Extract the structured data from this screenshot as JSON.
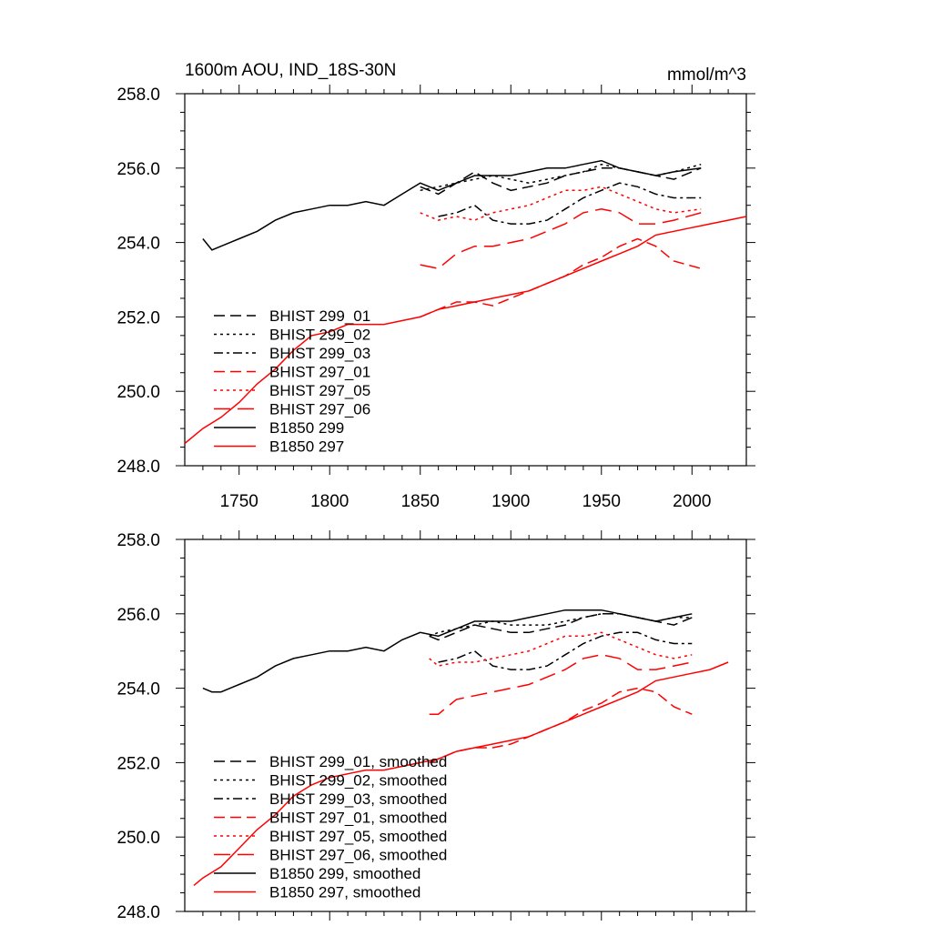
{
  "figure": {
    "title": "1600m AOU, IND_18S-30N",
    "units": "mmol/m^3"
  },
  "colors": {
    "black": "#000000",
    "red": "#ff0000"
  },
  "chart_data": [
    {
      "type": "line",
      "panel": "top",
      "xlim": [
        1720,
        2030
      ],
      "ylim": [
        248,
        258
      ],
      "xticks": [
        1750,
        1800,
        1850,
        1900,
        1950,
        2000
      ],
      "xtick_labels": [
        "1750",
        "1800",
        "1850",
        "1900",
        "1950",
        "2000"
      ],
      "yticks": [
        248,
        250,
        252,
        254,
        256,
        258
      ],
      "ytick_labels": [
        "248.0",
        "250.0",
        "252.0",
        "254.0",
        "256.0",
        "258.0"
      ],
      "legend_location": "lower-left",
      "series": [
        {
          "name": "BHIST 299_01",
          "color": "#000000",
          "dash": "dashed",
          "x": [
            1850,
            1860,
            1870,
            1880,
            1890,
            1900,
            1910,
            1920,
            1930,
            1940,
            1950,
            1960,
            1970,
            1980,
            1990,
            2005
          ],
          "y": [
            255.5,
            255.3,
            255.6,
            255.9,
            255.6,
            255.4,
            255.5,
            255.6,
            255.8,
            255.9,
            256.0,
            256.0,
            255.9,
            255.8,
            255.7,
            256.0
          ]
        },
        {
          "name": "BHIST 299_02",
          "color": "#000000",
          "dash": "dotted",
          "x": [
            1850,
            1860,
            1870,
            1880,
            1890,
            1900,
            1910,
            1920,
            1930,
            1940,
            1950,
            1960,
            1970,
            1980,
            1990,
            2005
          ],
          "y": [
            255.4,
            255.5,
            255.6,
            255.7,
            255.8,
            255.7,
            255.6,
            255.7,
            255.8,
            255.9,
            256.1,
            256.0,
            255.9,
            255.8,
            255.9,
            256.1
          ]
        },
        {
          "name": "BHIST 299_03",
          "color": "#000000",
          "dash": "dashdot",
          "x": [
            1860,
            1870,
            1880,
            1890,
            1900,
            1910,
            1920,
            1930,
            1940,
            1950,
            1960,
            1970,
            1980,
            1990,
            2005
          ],
          "y": [
            254.7,
            254.8,
            255.0,
            254.6,
            254.5,
            254.5,
            254.6,
            254.9,
            255.2,
            255.4,
            255.6,
            255.5,
            255.3,
            255.2,
            255.2
          ]
        },
        {
          "name": "BHIST 297_01",
          "color": "#ff0000",
          "dash": "dashed",
          "x": [
            1850,
            1860,
            1870,
            1880,
            1890,
            1900,
            1910,
            1920,
            1930,
            1940,
            1950,
            1960,
            1970,
            1980,
            1990,
            2005
          ],
          "y": [
            252.0,
            252.2,
            252.4,
            252.4,
            252.3,
            252.5,
            252.7,
            252.9,
            253.1,
            253.4,
            253.6,
            253.9,
            254.1,
            253.9,
            253.5,
            253.3
          ]
        },
        {
          "name": "BHIST 297_05",
          "color": "#ff0000",
          "dash": "dotted",
          "x": [
            1850,
            1860,
            1870,
            1880,
            1890,
            1900,
            1910,
            1920,
            1930,
            1940,
            1950,
            1960,
            1970,
            1980,
            1990,
            2005
          ],
          "y": [
            254.8,
            254.6,
            254.7,
            254.6,
            254.8,
            254.9,
            255.0,
            255.2,
            255.4,
            255.4,
            255.5,
            255.3,
            255.1,
            254.9,
            254.8,
            254.9
          ]
        },
        {
          "name": "BHIST 297_06",
          "color": "#ff0000",
          "dash": "longdash",
          "x": [
            1850,
            1860,
            1870,
            1880,
            1890,
            1900,
            1910,
            1920,
            1930,
            1940,
            1950,
            1960,
            1970,
            1980,
            1990,
            2005
          ],
          "y": [
            253.4,
            253.3,
            253.7,
            253.9,
            253.9,
            254.0,
            254.1,
            254.3,
            254.5,
            254.8,
            254.9,
            254.8,
            254.5,
            254.5,
            254.6,
            254.8
          ]
        },
        {
          "name": "B1850 299",
          "color": "#000000",
          "dash": "solid",
          "x": [
            1730,
            1735,
            1740,
            1750,
            1760,
            1770,
            1780,
            1790,
            1800,
            1810,
            1820,
            1830,
            1840,
            1850,
            1860,
            1870,
            1880,
            1890,
            1900,
            1910,
            1920,
            1930,
            1940,
            1950,
            1960,
            1970,
            1980,
            1990,
            2005
          ],
          "y": [
            254.1,
            253.8,
            253.9,
            254.1,
            254.3,
            254.6,
            254.8,
            254.9,
            255.0,
            255.0,
            255.1,
            255.0,
            255.3,
            255.6,
            255.4,
            255.6,
            255.8,
            255.8,
            255.8,
            255.9,
            256.0,
            256.0,
            256.1,
            256.2,
            256.0,
            255.9,
            255.8,
            255.9,
            256.0
          ]
        },
        {
          "name": "B1850 297",
          "color": "#ff0000",
          "dash": "solid",
          "x": [
            1720,
            1730,
            1740,
            1750,
            1760,
            1770,
            1780,
            1790,
            1800,
            1810,
            1820,
            1830,
            1840,
            1850,
            1860,
            1870,
            1880,
            1890,
            1900,
            1910,
            1920,
            1930,
            1940,
            1950,
            1960,
            1970,
            1980,
            1990,
            2000,
            2010,
            2020,
            2030
          ],
          "y": [
            248.6,
            249.0,
            249.3,
            249.7,
            250.2,
            250.6,
            251.1,
            251.5,
            251.6,
            251.8,
            251.8,
            251.8,
            251.9,
            252.0,
            252.2,
            252.3,
            252.4,
            252.5,
            252.6,
            252.7,
            252.9,
            253.1,
            253.3,
            253.5,
            253.7,
            253.9,
            254.2,
            254.3,
            254.4,
            254.5,
            254.6,
            254.7
          ]
        }
      ]
    },
    {
      "type": "line",
      "panel": "bottom",
      "xlim": [
        1720,
        2030
      ],
      "ylim": [
        248,
        258
      ],
      "yticks": [
        248,
        250,
        252,
        254,
        256,
        258
      ],
      "ytick_labels": [
        "248.0",
        "250.0",
        "252.0",
        "254.0",
        "256.0",
        "258.0"
      ],
      "legend_location": "lower-left",
      "series": [
        {
          "name": "BHIST 299_01, smoothed",
          "color": "#000000",
          "dash": "dashed",
          "x": [
            1855,
            1860,
            1870,
            1880,
            1890,
            1900,
            1910,
            1920,
            1930,
            1940,
            1950,
            1960,
            1970,
            1980,
            1990,
            2000
          ],
          "y": [
            255.4,
            255.3,
            255.5,
            255.7,
            255.6,
            255.5,
            255.5,
            255.6,
            255.7,
            255.9,
            256.0,
            256.0,
            255.9,
            255.8,
            255.7,
            255.9
          ]
        },
        {
          "name": "BHIST 299_02, smoothed",
          "color": "#000000",
          "dash": "dotted",
          "x": [
            1855,
            1860,
            1870,
            1880,
            1890,
            1900,
            1910,
            1920,
            1930,
            1940,
            1950,
            1960,
            1970,
            1980,
            1990,
            2000
          ],
          "y": [
            255.4,
            255.5,
            255.6,
            255.7,
            255.8,
            255.7,
            255.7,
            255.7,
            255.8,
            255.9,
            256.0,
            256.0,
            255.9,
            255.8,
            255.9,
            255.9
          ]
        },
        {
          "name": "BHIST 299_03, smoothed",
          "color": "#000000",
          "dash": "dashdot",
          "x": [
            1860,
            1870,
            1880,
            1890,
            1900,
            1910,
            1920,
            1930,
            1940,
            1950,
            1960,
            1970,
            1980,
            1990,
            2000
          ],
          "y": [
            254.7,
            254.8,
            255.0,
            254.6,
            254.5,
            254.5,
            254.6,
            254.9,
            255.2,
            255.4,
            255.5,
            255.5,
            255.3,
            255.2,
            255.2
          ]
        },
        {
          "name": "BHIST 297_01, smoothed",
          "color": "#ff0000",
          "dash": "dashed",
          "x": [
            1855,
            1860,
            1870,
            1880,
            1890,
            1900,
            1910,
            1920,
            1930,
            1940,
            1950,
            1960,
            1970,
            1980,
            1990,
            2000
          ],
          "y": [
            252.0,
            252.1,
            252.3,
            252.4,
            252.4,
            252.5,
            252.7,
            252.9,
            253.1,
            253.4,
            253.6,
            253.9,
            254.0,
            253.9,
            253.5,
            253.3
          ]
        },
        {
          "name": "BHIST 297_05, smoothed",
          "color": "#ff0000",
          "dash": "dotted",
          "x": [
            1855,
            1860,
            1870,
            1880,
            1890,
            1900,
            1910,
            1920,
            1930,
            1940,
            1950,
            1960,
            1970,
            1980,
            1990,
            2000
          ],
          "y": [
            254.8,
            254.6,
            254.7,
            254.7,
            254.8,
            254.9,
            255.0,
            255.2,
            255.4,
            255.4,
            255.5,
            255.3,
            255.1,
            254.9,
            254.8,
            254.9
          ]
        },
        {
          "name": "BHIST 297_06, smoothed",
          "color": "#ff0000",
          "dash": "longdash",
          "x": [
            1855,
            1860,
            1870,
            1880,
            1890,
            1900,
            1910,
            1920,
            1930,
            1940,
            1950,
            1960,
            1970,
            1980,
            1990,
            2000
          ],
          "y": [
            253.3,
            253.3,
            253.7,
            253.8,
            253.9,
            254.0,
            254.1,
            254.3,
            254.5,
            254.8,
            254.9,
            254.8,
            254.5,
            254.5,
            254.6,
            254.7
          ]
        },
        {
          "name": "B1850 299, smoothed",
          "color": "#000000",
          "dash": "solid",
          "x": [
            1730,
            1735,
            1740,
            1750,
            1760,
            1770,
            1780,
            1790,
            1800,
            1810,
            1820,
            1830,
            1840,
            1850,
            1860,
            1870,
            1880,
            1890,
            1900,
            1910,
            1920,
            1930,
            1940,
            1950,
            1960,
            1970,
            1980,
            1990,
            2000
          ],
          "y": [
            254.0,
            253.9,
            253.9,
            254.1,
            254.3,
            254.6,
            254.8,
            254.9,
            255.0,
            255.0,
            255.1,
            255.0,
            255.3,
            255.5,
            255.4,
            255.6,
            255.8,
            255.8,
            255.8,
            255.9,
            256.0,
            256.1,
            256.1,
            256.1,
            256.0,
            255.9,
            255.8,
            255.9,
            256.0
          ]
        },
        {
          "name": "B1850 297, smoothed",
          "color": "#ff0000",
          "dash": "solid",
          "x": [
            1725,
            1730,
            1740,
            1750,
            1760,
            1770,
            1780,
            1790,
            1800,
            1810,
            1820,
            1830,
            1840,
            1850,
            1860,
            1870,
            1880,
            1890,
            1900,
            1910,
            1920,
            1930,
            1940,
            1950,
            1960,
            1970,
            1980,
            1990,
            2000,
            2010,
            2020
          ],
          "y": [
            248.7,
            248.9,
            249.2,
            249.7,
            250.2,
            250.6,
            251.1,
            251.4,
            251.6,
            251.7,
            251.8,
            251.8,
            251.9,
            252.0,
            252.1,
            252.3,
            252.4,
            252.5,
            252.6,
            252.7,
            252.9,
            253.1,
            253.3,
            253.5,
            253.7,
            253.9,
            254.2,
            254.3,
            254.4,
            254.5,
            254.7
          ]
        }
      ]
    }
  ]
}
